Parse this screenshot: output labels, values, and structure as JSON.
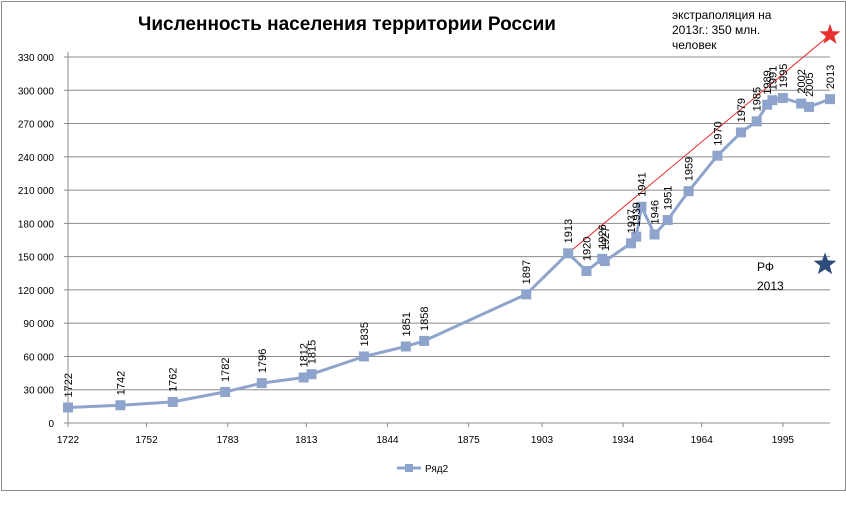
{
  "chart_data": {
    "type": "line",
    "title": "Численность населения территории России",
    "legend": {
      "entry": "Ряд2",
      "position": "bottom"
    },
    "xlim": [
      1722,
      2013
    ],
    "ylim": [
      0,
      330000
    ],
    "x_ticks": [
      1722,
      1752,
      1783,
      1813,
      1844,
      1875,
      1903,
      1934,
      1964,
      1995
    ],
    "x_tick_labels": [
      "1722",
      "1752",
      "1783",
      "1813",
      "1844",
      "1875",
      "1903",
      "1934",
      "1964",
      "1995"
    ],
    "y_ticks": [
      0,
      30000,
      60000,
      90000,
      120000,
      150000,
      180000,
      210000,
      240000,
      270000,
      300000,
      330000
    ],
    "y_tick_labels": [
      "0",
      "30 000",
      "60 000",
      "90 000",
      "120 000",
      "150 000",
      "180 000",
      "210 000",
      "240 000",
      "270 000",
      "300 000",
      "330 000"
    ],
    "grid": "horizontal",
    "series": [
      {
        "name": "Ряд2",
        "color": "#8ea4cc",
        "x": [
          1722,
          1742,
          1762,
          1782,
          1796,
          1812,
          1815,
          1835,
          1851,
          1858,
          1897,
          1913,
          1920,
          1926,
          1927,
          1937,
          1939,
          1941,
          1946,
          1951,
          1959,
          1970,
          1979,
          1985,
          1989,
          1991,
          1995,
          2002,
          2005,
          2013
        ],
        "y": [
          14000,
          16000,
          19000,
          28000,
          36000,
          41000,
          44000,
          60000,
          69000,
          74000,
          116000,
          153000,
          137000,
          148000,
          146000,
          162000,
          168000,
          195000,
          170000,
          183000,
          209000,
          241000,
          262000,
          272000,
          287000,
          291000,
          293000,
          288000,
          285000,
          292000
        ],
        "labels": [
          "1722",
          "1742",
          "1762",
          "1782",
          "1796",
          "1812",
          "1815",
          "1835",
          "1851",
          "1858",
          "1897",
          "1913",
          "1920",
          "1926",
          "1927",
          "1937",
          "1939",
          "1941",
          "1946",
          "1951",
          "1959",
          "1970",
          "1979",
          "1985",
          "1989",
          "1991",
          "1995",
          "2002",
          "2005",
          "2013"
        ]
      }
    ],
    "extrapolation": {
      "color": "#e83030",
      "from": {
        "x": 1913,
        "y": 153000
      },
      "to": {
        "x": 2013,
        "y": 350000
      },
      "note": "экстраполяция на 2013г.: 350 млн. человек"
    },
    "rf_point": {
      "color": "#2c4c7c",
      "x": 2013,
      "y": 143000,
      "label": "РФ 2013"
    }
  }
}
